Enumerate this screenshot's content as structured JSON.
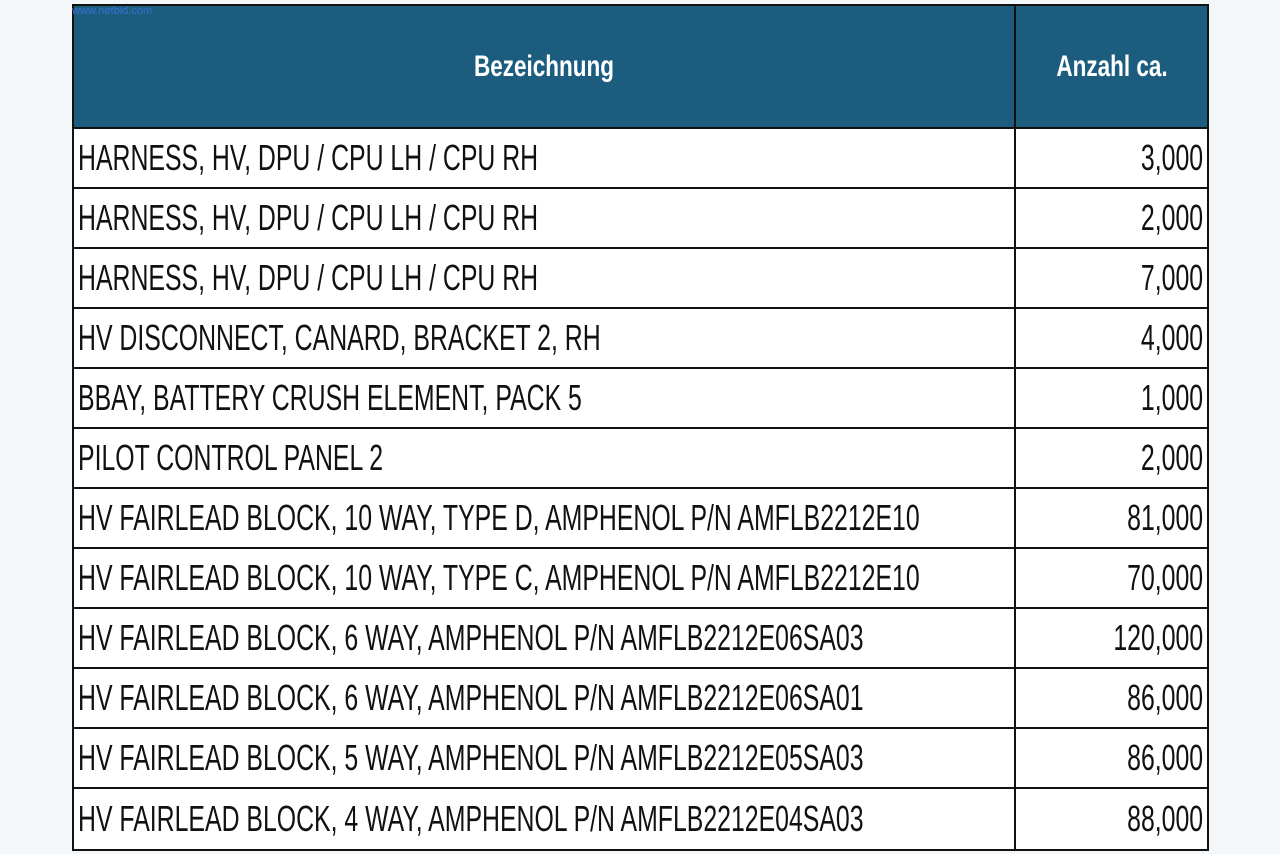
{
  "watermark": "www.netbid.com",
  "table": {
    "header": [
      "Bezeichnung",
      "Anzahl ca."
    ],
    "rows": [
      [
        "HARNESS, HV, DPU / CPU LH / CPU RH",
        "3,000"
      ],
      [
        "HARNESS, HV, DPU / CPU LH / CPU RH",
        "2,000"
      ],
      [
        "HARNESS, HV, DPU / CPU LH / CPU RH",
        "7,000"
      ],
      [
        "HV DISCONNECT, CANARD, BRACKET 2, RH",
        "4,000"
      ],
      [
        "BBAY, BATTERY CRUSH ELEMENT, PACK 5",
        "1,000"
      ],
      [
        "PILOT CONTROL PANEL 2",
        "2,000"
      ],
      [
        "HV FAIRLEAD BLOCK, 10 WAY, TYPE D, AMPHENOL P/N AMFLB2212E10",
        "81,000"
      ],
      [
        "HV FAIRLEAD BLOCK, 10 WAY, TYPE C, AMPHENOL P/N AMFLB2212E10",
        "70,000"
      ],
      [
        "HV FAIRLEAD BLOCK, 6 WAY, AMPHENOL P/N AMFLB2212E06SA03",
        "120,000"
      ],
      [
        "HV FAIRLEAD BLOCK, 6 WAY, AMPHENOL P/N AMFLB2212E06SA01",
        "86,000"
      ],
      [
        "HV FAIRLEAD BLOCK, 5 WAY, AMPHENOL P/N AMFLB2212E05SA03",
        "86,000"
      ],
      [
        "HV FAIRLEAD BLOCK, 4 WAY, AMPHENOL P/N AMFLB2212E04SA03",
        "88,000"
      ]
    ]
  }
}
